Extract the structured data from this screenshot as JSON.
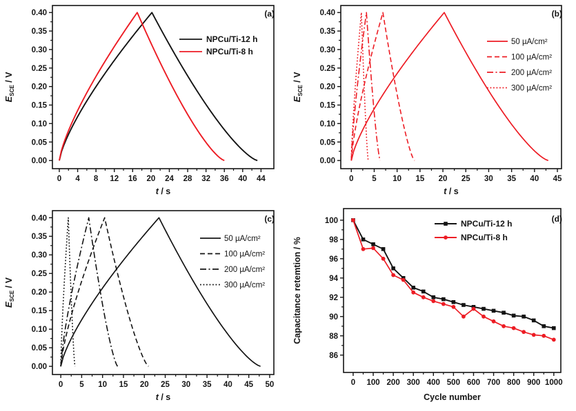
{
  "figure": {
    "background": "#ffffff",
    "palette": {
      "black": "#141414",
      "red": "#ed1c24"
    }
  },
  "chart_data": [
    {
      "id": "a",
      "type": "line",
      "subtype": "galvanostatic-charge-discharge",
      "panel_tag": "(a)",
      "xlabel": {
        "italic": "t",
        "rest": " / s"
      },
      "ylabel": {
        "italic": "E",
        "sub": "SCE",
        "rest": " / V"
      },
      "x_domain": [
        -1.5,
        46.8
      ],
      "y_domain": [
        -0.022,
        0.419
      ],
      "x_ticks": [
        0,
        4,
        8,
        12,
        16,
        20,
        24,
        28,
        32,
        36,
        40,
        44
      ],
      "y_ticks": [
        0,
        0.05,
        0.1,
        0.15,
        0.2,
        0.25,
        0.3,
        0.35,
        0.4
      ],
      "y_tick_labels": [
        "0.00",
        "0.05",
        "0.10",
        "0.15",
        "0.20",
        "0.25",
        "0.30",
        "0.35",
        "0.40"
      ],
      "curves": [
        {
          "label": "NPCu/Ti-12 h",
          "color": "black",
          "line_style": "solid",
          "t_start": 0,
          "t_peak": 20.2,
          "t_end": 43.2,
          "v_peak": 0.4
        },
        {
          "label": "NPCu/Ti-8 h",
          "color": "red",
          "line_style": "solid",
          "t_start": 0,
          "t_peak": 17.0,
          "t_end": 36.0,
          "v_peak": 0.4
        }
      ]
    },
    {
      "id": "b",
      "type": "line",
      "subtype": "galvanostatic-charge-discharge",
      "panel_tag": "(b)",
      "xlabel": {
        "italic": "t",
        "rest": " / s"
      },
      "ylabel": {
        "italic": "E",
        "sub": "SCE",
        "rest": " / V"
      },
      "x_domain": [
        -2.3,
        45.9
      ],
      "y_domain": [
        -0.022,
        0.419
      ],
      "x_ticks": [
        0,
        5,
        10,
        15,
        20,
        25,
        30,
        35,
        40,
        45
      ],
      "y_ticks": [
        0,
        0.05,
        0.1,
        0.15,
        0.2,
        0.25,
        0.3,
        0.35,
        0.4
      ],
      "y_tick_labels": [
        "0.00",
        "0.05",
        "0.10",
        "0.15",
        "0.20",
        "0.25",
        "0.30",
        "0.35",
        "0.40"
      ],
      "curves": [
        {
          "label": "50 µA/cm²",
          "color": "red",
          "line_style": "solid",
          "t_start": 0,
          "t_peak": 20.3,
          "t_end": 43.0,
          "v_peak": 0.4
        },
        {
          "label": "100 µA/cm²",
          "color": "red",
          "line_style": "dashed",
          "t_start": 0,
          "t_peak": 6.9,
          "t_end": 13.8,
          "v_peak": 0.4
        },
        {
          "label": "200 µA/cm²",
          "color": "red",
          "line_style": "dashdot",
          "t_start": 0,
          "t_peak": 3.3,
          "t_end": 6.3,
          "v_peak": 0.4
        },
        {
          "label": "300 µA/cm²",
          "color": "red",
          "line_style": "dotted",
          "t_start": 0,
          "t_peak": 2.2,
          "t_end": 3.7,
          "v_peak": 0.4
        }
      ]
    },
    {
      "id": "c",
      "type": "line",
      "subtype": "galvanostatic-charge-discharge",
      "panel_tag": "(c)",
      "xlabel": {
        "italic": "t",
        "rest": " / s"
      },
      "ylabel": {
        "italic": "E",
        "sub": "SCE",
        "rest": " / V"
      },
      "x_domain": [
        -2.0,
        51.0
      ],
      "y_domain": [
        -0.022,
        0.419
      ],
      "x_ticks": [
        0,
        5,
        10,
        15,
        20,
        25,
        30,
        35,
        40,
        45,
        50
      ],
      "y_ticks": [
        0,
        0.05,
        0.1,
        0.15,
        0.2,
        0.25,
        0.3,
        0.35,
        0.4
      ],
      "y_tick_labels": [
        "0.00",
        "0.05",
        "0.10",
        "0.15",
        "0.20",
        "0.25",
        "0.30",
        "0.35",
        "0.40"
      ],
      "curves": [
        {
          "label": "50 µA/cm²",
          "color": "black",
          "line_style": "solid",
          "t_start": 0,
          "t_peak": 23.5,
          "t_end": 47.8,
          "v_peak": 0.4
        },
        {
          "label": "100 µA/cm²",
          "color": "black",
          "line_style": "dashed",
          "t_start": 0,
          "t_peak": 10.5,
          "t_end": 21.0,
          "v_peak": 0.4
        },
        {
          "label": "200 µA/cm²",
          "color": "black",
          "line_style": "dashdot",
          "t_start": 0,
          "t_peak": 6.7,
          "t_end": 13.6,
          "v_peak": 0.4
        },
        {
          "label": "300 µA/cm²",
          "color": "black",
          "line_style": "dotted",
          "t_start": 0,
          "t_peak": 1.8,
          "t_end": 3.4,
          "v_peak": 0.4
        }
      ]
    },
    {
      "id": "d",
      "type": "scatter-line",
      "subtype": "cycling-stability",
      "panel_tag": "(d)",
      "xlabel": {
        "rest": "Cycle number"
      },
      "ylabel": {
        "rest": "Capacitance retemtion / %"
      },
      "x_domain": [
        -48,
        1035
      ],
      "y_domain": [
        84.2,
        101.2
      ],
      "x_ticks": [
        0,
        100,
        200,
        300,
        400,
        500,
        600,
        700,
        800,
        900,
        1000
      ],
      "y_ticks": [
        86,
        88,
        90,
        92,
        94,
        96,
        98,
        100
      ],
      "y_tick_labels": [
        "86",
        "88",
        "90",
        "92",
        "94",
        "96",
        "98",
        "100"
      ],
      "series": [
        {
          "name": "NPCu/Ti-12 h",
          "color": "black",
          "marker": "square",
          "x": [
            0,
            50,
            100,
            150,
            200,
            250,
            300,
            350,
            400,
            450,
            500,
            550,
            600,
            650,
            700,
            750,
            800,
            850,
            900,
            950,
            1000
          ],
          "y": [
            100,
            98.0,
            97.5,
            97.0,
            95.0,
            94.0,
            93.0,
            92.6,
            92.0,
            91.8,
            91.5,
            91.2,
            91.0,
            90.8,
            90.6,
            90.4,
            90.1,
            90.0,
            89.6,
            89.0,
            88.8
          ]
        },
        {
          "name": "NPCu/Ti-8 h",
          "color": "red",
          "marker": "circle",
          "x": [
            0,
            50,
            100,
            150,
            200,
            250,
            300,
            350,
            400,
            450,
            500,
            550,
            600,
            650,
            700,
            750,
            800,
            850,
            900,
            950,
            1000
          ],
          "y": [
            100,
            97.0,
            97.1,
            96.0,
            94.3,
            93.8,
            92.5,
            92.0,
            91.6,
            91.3,
            91.0,
            90.0,
            90.8,
            90.0,
            89.5,
            89.0,
            88.8,
            88.4,
            88.1,
            88.0,
            87.6
          ]
        }
      ]
    }
  ]
}
